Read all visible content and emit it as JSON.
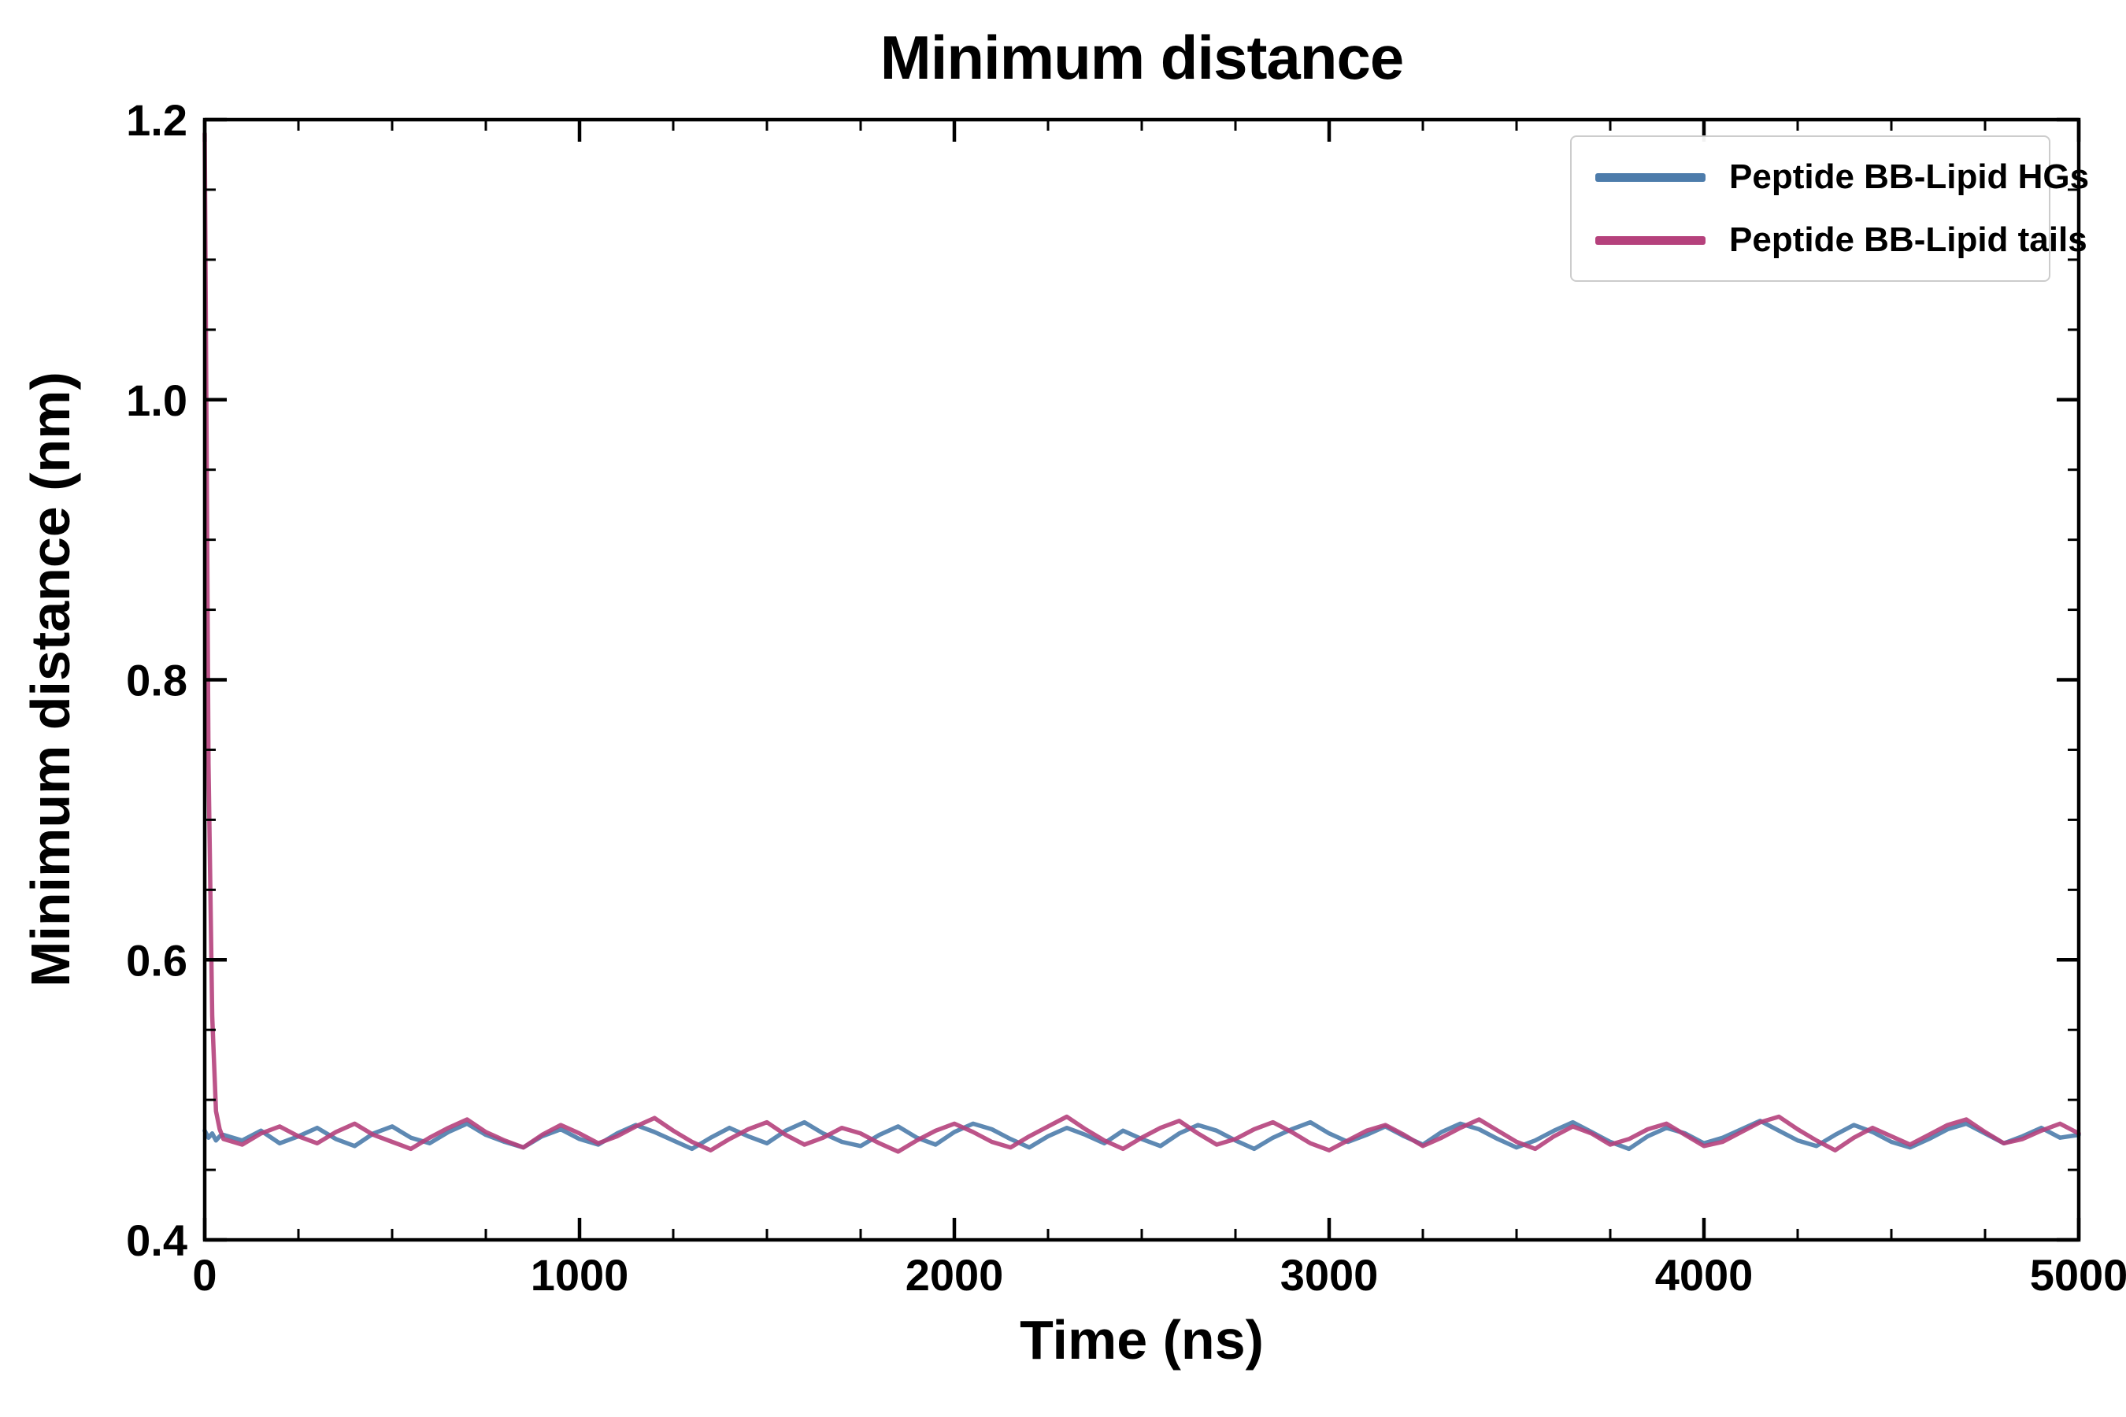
{
  "chart_data": {
    "type": "line",
    "title": "Minimum distance",
    "xlabel": "Time (ns)",
    "ylabel": "Minimum distance (nm)",
    "xlim": [
      0,
      5000
    ],
    "ylim": [
      0.4,
      1.2
    ],
    "xtick_values": [
      0,
      1000,
      2000,
      3000,
      4000,
      5000
    ],
    "xtick_labels": [
      "0",
      "1000",
      "2000",
      "3000",
      "4000",
      "5000"
    ],
    "ytick_values": [
      0.4,
      0.6,
      0.8,
      1.0,
      1.2
    ],
    "ytick_labels": [
      "0.4",
      "0.6",
      "0.8",
      "1.0",
      "1.2"
    ],
    "x_minor_step": 250,
    "y_minor_step": 0.05,
    "grid": false,
    "legend_position": "upper right",
    "x": [
      0,
      10,
      20,
      30,
      40,
      50,
      100,
      150,
      200,
      250,
      300,
      350,
      400,
      450,
      500,
      550,
      600,
      650,
      700,
      750,
      800,
      850,
      900,
      950,
      1000,
      1050,
      1100,
      1150,
      1200,
      1250,
      1300,
      1350,
      1400,
      1450,
      1500,
      1550,
      1600,
      1650,
      1700,
      1750,
      1800,
      1850,
      1900,
      1950,
      2000,
      2050,
      2100,
      2150,
      2200,
      2250,
      2300,
      2350,
      2400,
      2450,
      2500,
      2550,
      2600,
      2650,
      2700,
      2750,
      2800,
      2850,
      2900,
      2950,
      3000,
      3050,
      3100,
      3150,
      3200,
      3250,
      3300,
      3350,
      3400,
      3450,
      3500,
      3550,
      3600,
      3650,
      3700,
      3750,
      3800,
      3850,
      3900,
      3950,
      4000,
      4050,
      4100,
      4150,
      4200,
      4250,
      4300,
      4350,
      4400,
      4450,
      4500,
      4550,
      4600,
      4650,
      4700,
      4750,
      4800,
      4850,
      4900,
      4950,
      5000
    ],
    "series": [
      {
        "name": "Peptide BB-Lipid HGs",
        "color": "#4d7cab",
        "values": [
          0.478,
          0.473,
          0.476,
          0.471,
          0.474,
          0.475,
          0.471,
          0.478,
          0.469,
          0.474,
          0.48,
          0.472,
          0.467,
          0.476,
          0.481,
          0.473,
          0.469,
          0.477,
          0.483,
          0.475,
          0.47,
          0.466,
          0.474,
          0.479,
          0.472,
          0.468,
          0.476,
          0.482,
          0.477,
          0.471,
          0.465,
          0.473,
          0.48,
          0.474,
          0.469,
          0.478,
          0.484,
          0.476,
          0.47,
          0.467,
          0.475,
          0.481,
          0.473,
          0.468,
          0.477,
          0.483,
          0.479,
          0.472,
          0.466,
          0.474,
          0.48,
          0.475,
          0.469,
          0.478,
          0.472,
          0.467,
          0.476,
          0.482,
          0.478,
          0.471,
          0.465,
          0.473,
          0.479,
          0.484,
          0.476,
          0.47,
          0.475,
          0.481,
          0.474,
          0.468,
          0.477,
          0.483,
          0.479,
          0.472,
          0.466,
          0.471,
          0.478,
          0.484,
          0.477,
          0.47,
          0.465,
          0.474,
          0.48,
          0.476,
          0.469,
          0.473,
          0.479,
          0.485,
          0.478,
          0.471,
          0.467,
          0.475,
          0.482,
          0.477,
          0.47,
          0.466,
          0.472,
          0.479,
          0.483,
          0.476,
          0.469,
          0.474,
          0.48,
          0.473,
          0.475
        ]
      },
      {
        "name": "Peptide BB-Lipid tails",
        "color": "#b5417c",
        "values": [
          1.19,
          0.74,
          0.56,
          0.492,
          0.479,
          0.472,
          0.468,
          0.476,
          0.481,
          0.474,
          0.469,
          0.477,
          0.483,
          0.475,
          0.47,
          0.465,
          0.473,
          0.48,
          0.486,
          0.477,
          0.471,
          0.466,
          0.475,
          0.482,
          0.476,
          0.469,
          0.474,
          0.481,
          0.487,
          0.478,
          0.47,
          0.464,
          0.472,
          0.479,
          0.484,
          0.475,
          0.468,
          0.473,
          0.48,
          0.476,
          0.469,
          0.463,
          0.471,
          0.478,
          0.483,
          0.477,
          0.47,
          0.466,
          0.474,
          0.481,
          0.488,
          0.479,
          0.471,
          0.465,
          0.473,
          0.48,
          0.485,
          0.476,
          0.468,
          0.472,
          0.479,
          0.484,
          0.477,
          0.469,
          0.464,
          0.471,
          0.478,
          0.482,
          0.475,
          0.467,
          0.473,
          0.48,
          0.486,
          0.478,
          0.47,
          0.465,
          0.474,
          0.481,
          0.476,
          0.468,
          0.472,
          0.479,
          0.483,
          0.475,
          0.467,
          0.47,
          0.477,
          0.484,
          0.488,
          0.479,
          0.471,
          0.464,
          0.473,
          0.48,
          0.474,
          0.468,
          0.475,
          0.482,
          0.486,
          0.477,
          0.469,
          0.472,
          0.478,
          0.483,
          0.476
        ]
      }
    ]
  }
}
